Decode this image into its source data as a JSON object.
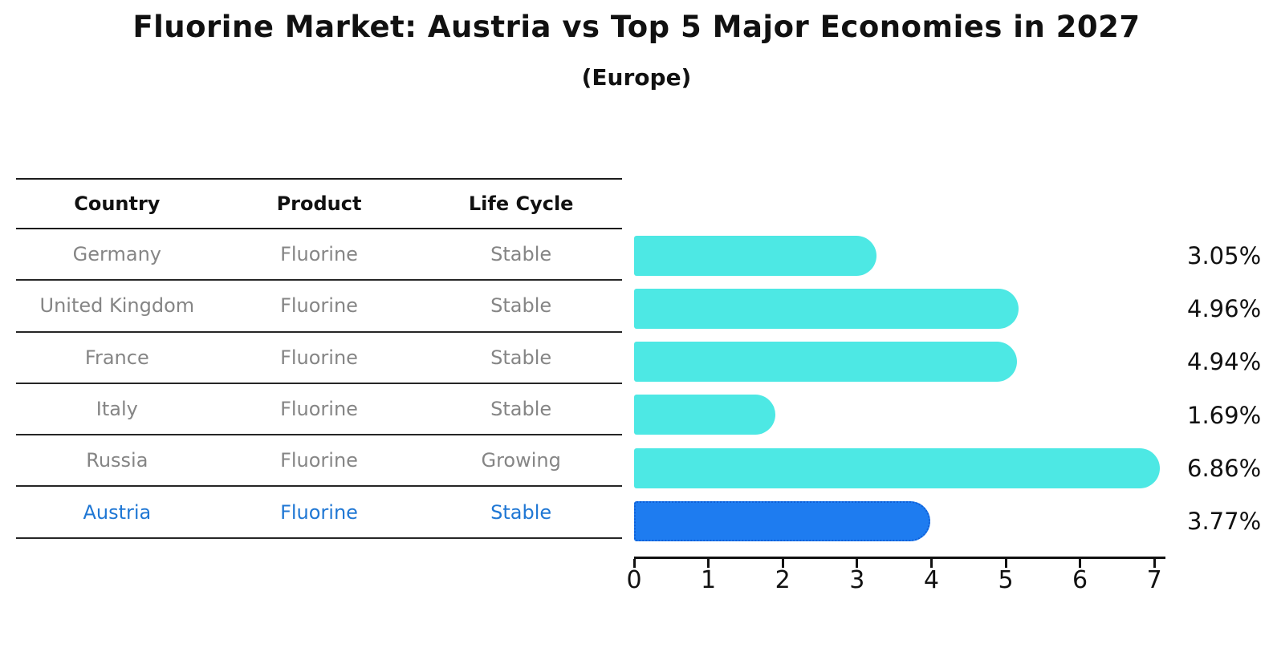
{
  "title": "Fluorine Market: Austria vs Top 5 Major Economies in 2027",
  "subtitle": "(Europe)",
  "table": {
    "headers": [
      "Country",
      "Product",
      "Life Cycle"
    ],
    "rows": [
      {
        "country": "Germany",
        "product": "Fluorine",
        "life_cycle": "Stable",
        "highlight": false
      },
      {
        "country": "United Kingdom",
        "product": "Fluorine",
        "life_cycle": "Stable",
        "highlight": false
      },
      {
        "country": "France",
        "product": "Fluorine",
        "life_cycle": "Stable",
        "highlight": false
      },
      {
        "country": "Italy",
        "product": "Fluorine",
        "life_cycle": "Stable",
        "highlight": false
      },
      {
        "country": "Russia",
        "product": "Fluorine",
        "life_cycle": "Growing",
        "highlight": false
      },
      {
        "country": "Austria",
        "product": "Fluorine",
        "life_cycle": "Stable",
        "highlight": true
      }
    ]
  },
  "chart_data": {
    "type": "bar",
    "orientation": "horizontal",
    "title": "Fluorine Market: Austria vs Top 5 Major Economies in 2027",
    "subtitle": "(Europe)",
    "categories": [
      "Germany",
      "United Kingdom",
      "France",
      "Italy",
      "Russia",
      "Austria"
    ],
    "values": [
      3.05,
      4.96,
      4.94,
      1.69,
      6.86,
      3.77
    ],
    "value_labels": [
      "3.05%",
      "4.96%",
      "4.94%",
      "1.69%",
      "6.86%",
      "3.77%"
    ],
    "unit": "%",
    "highlight_category": "Austria",
    "highlight_index": 5,
    "xlim": [
      0,
      7.15
    ],
    "x_ticks": [
      0,
      1,
      2,
      3,
      4,
      5,
      6,
      7
    ],
    "grid": false,
    "legend": false,
    "bar_color": "#4DE8E4",
    "highlight_bar_color": "#1E7CF0",
    "highlight_bar_border_color": "#0F5FD7"
  },
  "colors": {
    "background": "#FFFFFF",
    "table_text_gray": "#858585",
    "highlight_text_blue": "#1F77D4",
    "axis_black": "#111111"
  }
}
